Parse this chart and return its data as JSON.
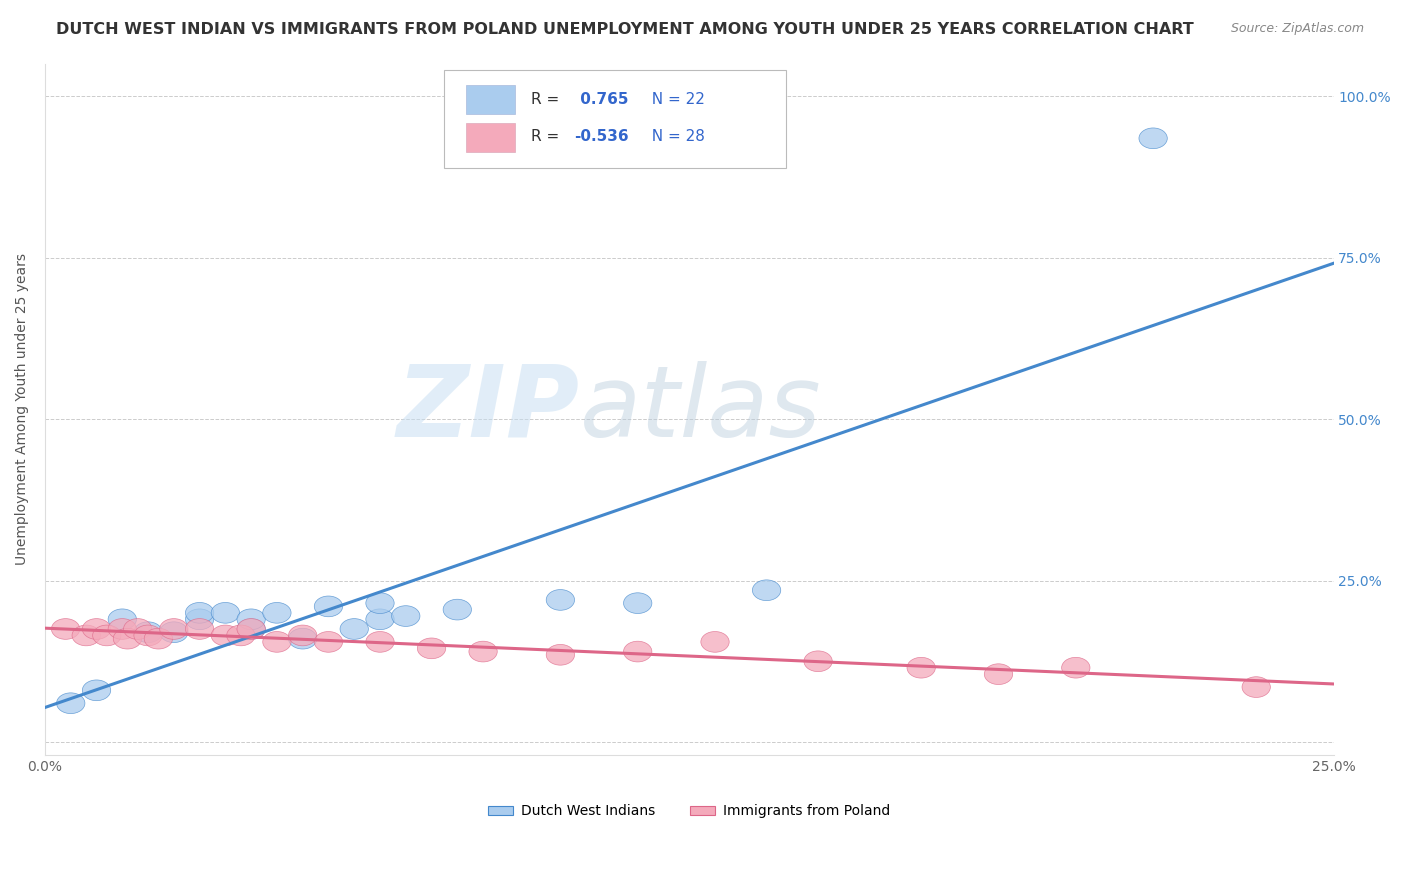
{
  "title": "DUTCH WEST INDIAN VS IMMIGRANTS FROM POLAND UNEMPLOYMENT AMONG YOUTH UNDER 25 YEARS CORRELATION CHART",
  "source": "Source: ZipAtlas.com",
  "ylabel": "Unemployment Among Youth under 25 years",
  "xlim": [
    0.0,
    0.25
  ],
  "ylim": [
    -0.02,
    1.05
  ],
  "x_ticks": [
    0.0,
    0.05,
    0.1,
    0.15,
    0.2,
    0.25
  ],
  "x_tick_labels": [
    "0.0%",
    "",
    "",
    "",
    "",
    "25.0%"
  ],
  "y_ticks": [
    0.0,
    0.25,
    0.5,
    0.75,
    1.0
  ],
  "y_tick_labels_right": [
    "",
    "25.0%",
    "50.0%",
    "75.0%",
    "100.0%"
  ],
  "r_blue": 0.765,
  "n_blue": 22,
  "r_pink": -0.536,
  "n_pink": 28,
  "blue_scatter_x": [
    0.005,
    0.01,
    0.015,
    0.02,
    0.025,
    0.03,
    0.03,
    0.035,
    0.04,
    0.04,
    0.045,
    0.05,
    0.055,
    0.06,
    0.065,
    0.065,
    0.07,
    0.08,
    0.1,
    0.115,
    0.14,
    0.215
  ],
  "blue_scatter_y": [
    0.06,
    0.08,
    0.19,
    0.17,
    0.17,
    0.19,
    0.2,
    0.2,
    0.175,
    0.19,
    0.2,
    0.16,
    0.21,
    0.175,
    0.19,
    0.215,
    0.195,
    0.205,
    0.22,
    0.215,
    0.235,
    0.935
  ],
  "pink_scatter_x": [
    0.004,
    0.008,
    0.01,
    0.012,
    0.015,
    0.016,
    0.018,
    0.02,
    0.022,
    0.025,
    0.03,
    0.035,
    0.038,
    0.04,
    0.045,
    0.05,
    0.055,
    0.065,
    0.075,
    0.085,
    0.1,
    0.115,
    0.13,
    0.15,
    0.17,
    0.185,
    0.2,
    0.235
  ],
  "pink_scatter_y": [
    0.175,
    0.165,
    0.175,
    0.165,
    0.175,
    0.16,
    0.175,
    0.165,
    0.16,
    0.175,
    0.175,
    0.165,
    0.165,
    0.175,
    0.155,
    0.165,
    0.155,
    0.155,
    0.145,
    0.14,
    0.135,
    0.14,
    0.155,
    0.125,
    0.115,
    0.105,
    0.115,
    0.085
  ],
  "blue_color": "#aaccee",
  "pink_color": "#f4aabb",
  "blue_line_color": "#4488cc",
  "pink_line_color": "#dd6688",
  "background_color": "#ffffff",
  "watermark_zip": "ZIP",
  "watermark_atlas": "atlas",
  "legend_label_blue": "Dutch West Indians",
  "legend_label_pink": "Immigrants from Poland",
  "title_fontsize": 11.5,
  "axis_label_fontsize": 10,
  "legend_r_color": "#3366cc"
}
